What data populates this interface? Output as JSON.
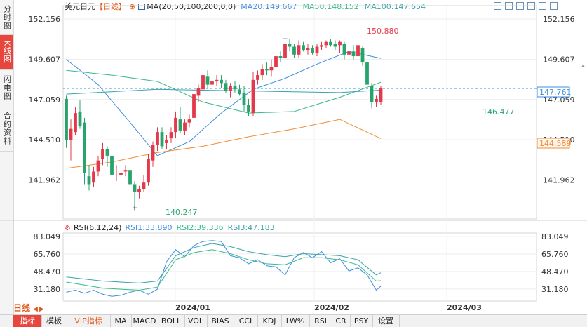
{
  "side_tabs": [
    {
      "label": "分时图",
      "active": false
    },
    {
      "label": "K线图",
      "active": true
    },
    {
      "label": "闪电图",
      "active": false
    },
    {
      "label": "合约资料",
      "active": false
    }
  ],
  "legend": {
    "symbol": "美元日元",
    "period_tag": "【日线】",
    "ma_label": "MA(20,50,100,200,0,0)",
    "ma20": "MA20:149.667",
    "ma50": "MA50:148.152",
    "ma100": "MA100:147.654"
  },
  "toolbar_icons": [
    "crosshair-tool-icon",
    "zoom-in-icon",
    "zoom-out-icon",
    "expand-icon",
    "left-icon",
    "right-icon"
  ],
  "colors": {
    "up": "#e4394a",
    "down": "#26a46c",
    "ma20": "#3d8ee0",
    "ma50": "#36b88e",
    "ma100": "#3aa3a8",
    "ma200": "#f28c35",
    "rsi1": "#3d8ee0",
    "rsi2": "#36b88e",
    "rsi3": "#3aa3a8"
  },
  "price_axis": {
    "ticks": [
      "152.156",
      "149.607",
      "147.059",
      "144.510",
      "141.962"
    ],
    "current_price": "147.761",
    "ma200_value": "144.589"
  },
  "annotations": {
    "high": "150.880",
    "low": "140.247",
    "recent_low": "146.477"
  },
  "rsi_legend": {
    "label": "RSI(6,12,24)",
    "rsi1": "RSI1:33.890",
    "rsi2": "RSI2:39.336",
    "rsi3": "RSI3:47.183"
  },
  "rsi_axis": {
    "ticks": [
      "83.049",
      "65.760",
      "48.470",
      "31.180"
    ]
  },
  "date_labels": [
    "2024/01",
    "2024/02",
    "2024/03"
  ],
  "period_selector": "日线",
  "bottom_tabs": [
    {
      "label": "指标",
      "active": true
    },
    {
      "label": "模板",
      "active": false
    },
    {
      "label": "VIP指标",
      "active": false
    },
    {
      "label": "MA",
      "active": false
    },
    {
      "label": "MACD",
      "active": false
    },
    {
      "label": "BOLL",
      "active": false
    },
    {
      "label": "VOL",
      "active": false
    },
    {
      "label": "BIAS",
      "active": false
    },
    {
      "label": "CCI",
      "active": false
    },
    {
      "label": "KDJ",
      "active": false
    },
    {
      "label": "LW%",
      "active": false
    },
    {
      "label": "RSI",
      "active": false
    },
    {
      "label": "CR",
      "active": false
    },
    {
      "label": "PSY",
      "active": false
    },
    {
      "label": "设置",
      "active": false
    }
  ],
  "chart_data": {
    "type": "candlestick",
    "title": "美元日元 日线",
    "y_range": [
      139.5,
      153.0
    ],
    "candles": [
      {
        "o": 147.1,
        "h": 147.3,
        "l": 144.0,
        "c": 144.5
      },
      {
        "o": 144.5,
        "h": 145.8,
        "l": 143.2,
        "c": 145.2
      },
      {
        "o": 145.0,
        "h": 146.6,
        "l": 144.8,
        "c": 146.2
      },
      {
        "o": 146.3,
        "h": 147.0,
        "l": 145.2,
        "c": 145.4
      },
      {
        "o": 145.6,
        "h": 145.9,
        "l": 141.7,
        "c": 142.4
      },
      {
        "o": 142.2,
        "h": 142.9,
        "l": 141.3,
        "c": 141.7
      },
      {
        "o": 141.8,
        "h": 142.8,
        "l": 141.5,
        "c": 142.5
      },
      {
        "o": 142.5,
        "h": 143.5,
        "l": 142.2,
        "c": 143.2
      },
      {
        "o": 143.3,
        "h": 144.3,
        "l": 142.9,
        "c": 143.9
      },
      {
        "o": 143.9,
        "h": 144.1,
        "l": 142.8,
        "c": 143.5
      },
      {
        "o": 143.5,
        "h": 143.9,
        "l": 141.9,
        "c": 142.3
      },
      {
        "o": 142.3,
        "h": 142.9,
        "l": 141.9,
        "c": 142.3
      },
      {
        "o": 142.3,
        "h": 142.8,
        "l": 142.1,
        "c": 142.4
      },
      {
        "o": 142.5,
        "h": 142.9,
        "l": 142.2,
        "c": 142.6
      },
      {
        "o": 142.6,
        "h": 142.9,
        "l": 141.4,
        "c": 141.7
      },
      {
        "o": 141.7,
        "h": 141.9,
        "l": 140.2,
        "c": 141.2
      },
      {
        "o": 141.2,
        "h": 141.6,
        "l": 140.8,
        "c": 141.4
      },
      {
        "o": 141.4,
        "h": 142.3,
        "l": 141.2,
        "c": 141.8
      },
      {
        "o": 141.8,
        "h": 143.6,
        "l": 141.6,
        "c": 143.3
      },
      {
        "o": 143.2,
        "h": 144.4,
        "l": 142.8,
        "c": 144.2
      },
      {
        "o": 144.2,
        "h": 145.3,
        "l": 143.8,
        "c": 145.0
      },
      {
        "o": 145.0,
        "h": 145.3,
        "l": 143.9,
        "c": 144.1
      },
      {
        "o": 144.3,
        "h": 144.8,
        "l": 143.9,
        "c": 144.5
      },
      {
        "o": 144.6,
        "h": 145.3,
        "l": 144.3,
        "c": 145.0
      },
      {
        "o": 145.0,
        "h": 146.3,
        "l": 144.6,
        "c": 145.9
      },
      {
        "o": 145.8,
        "h": 146.6,
        "l": 144.9,
        "c": 145.1
      },
      {
        "o": 145.1,
        "h": 145.8,
        "l": 144.8,
        "c": 145.6
      },
      {
        "o": 145.6,
        "h": 146.1,
        "l": 145.3,
        "c": 145.8
      },
      {
        "o": 145.9,
        "h": 147.7,
        "l": 145.6,
        "c": 147.4
      },
      {
        "o": 147.3,
        "h": 148.0,
        "l": 146.9,
        "c": 147.8
      },
      {
        "o": 147.7,
        "h": 148.9,
        "l": 147.2,
        "c": 148.6
      },
      {
        "o": 148.5,
        "h": 148.9,
        "l": 147.8,
        "c": 148.0
      },
      {
        "o": 148.0,
        "h": 148.3,
        "l": 147.7,
        "c": 148.2
      },
      {
        "o": 148.2,
        "h": 148.6,
        "l": 147.9,
        "c": 148.3
      },
      {
        "o": 148.3,
        "h": 148.6,
        "l": 147.8,
        "c": 148.1
      },
      {
        "o": 148.1,
        "h": 148.3,
        "l": 147.5,
        "c": 147.6
      },
      {
        "o": 147.6,
        "h": 148.1,
        "l": 147.2,
        "c": 147.9
      },
      {
        "o": 147.9,
        "h": 148.2,
        "l": 147.5,
        "c": 147.7
      },
      {
        "o": 147.7,
        "h": 148.0,
        "l": 147.3,
        "c": 147.4
      },
      {
        "o": 147.5,
        "h": 147.9,
        "l": 146.3,
        "c": 146.7
      },
      {
        "o": 146.7,
        "h": 147.1,
        "l": 146.0,
        "c": 146.3
      },
      {
        "o": 146.2,
        "h": 148.8,
        "l": 146.0,
        "c": 148.3
      },
      {
        "o": 148.3,
        "h": 148.9,
        "l": 148.0,
        "c": 148.6
      },
      {
        "o": 148.6,
        "h": 149.3,
        "l": 148.3,
        "c": 149.0
      },
      {
        "o": 149.0,
        "h": 149.4,
        "l": 148.6,
        "c": 148.9
      },
      {
        "o": 148.9,
        "h": 149.6,
        "l": 148.5,
        "c": 149.1
      },
      {
        "o": 149.1,
        "h": 150.0,
        "l": 148.9,
        "c": 149.8
      },
      {
        "o": 149.8,
        "h": 150.1,
        "l": 149.4,
        "c": 149.7
      },
      {
        "o": 149.7,
        "h": 150.9,
        "l": 149.6,
        "c": 150.6
      },
      {
        "o": 150.6,
        "h": 150.9,
        "l": 150.1,
        "c": 150.4
      },
      {
        "o": 150.4,
        "h": 150.6,
        "l": 149.7,
        "c": 149.9
      },
      {
        "o": 149.9,
        "h": 150.8,
        "l": 149.7,
        "c": 150.5
      },
      {
        "o": 150.5,
        "h": 150.7,
        "l": 150.1,
        "c": 150.2
      },
      {
        "o": 150.2,
        "h": 150.6,
        "l": 149.9,
        "c": 150.3
      },
      {
        "o": 150.3,
        "h": 150.5,
        "l": 149.9,
        "c": 150.0
      },
      {
        "o": 150.0,
        "h": 150.6,
        "l": 149.8,
        "c": 150.4
      },
      {
        "o": 150.4,
        "h": 150.7,
        "l": 150.2,
        "c": 150.5
      },
      {
        "o": 150.5,
        "h": 150.8,
        "l": 150.3,
        "c": 150.7
      },
      {
        "o": 150.7,
        "h": 150.9,
        "l": 150.4,
        "c": 150.5
      },
      {
        "o": 150.6,
        "h": 150.8,
        "l": 150.2,
        "c": 150.4
      },
      {
        "o": 150.5,
        "h": 150.8,
        "l": 150.0,
        "c": 150.7
      },
      {
        "o": 150.6,
        "h": 150.7,
        "l": 149.6,
        "c": 149.9
      },
      {
        "o": 149.9,
        "h": 150.4,
        "l": 149.5,
        "c": 150.1
      },
      {
        "o": 150.1,
        "h": 150.5,
        "l": 149.6,
        "c": 149.8
      },
      {
        "o": 149.8,
        "h": 150.6,
        "l": 149.6,
        "c": 150.5
      },
      {
        "o": 150.3,
        "h": 150.4,
        "l": 149.2,
        "c": 149.4
      },
      {
        "o": 149.4,
        "h": 149.6,
        "l": 147.7,
        "c": 148.0
      },
      {
        "o": 147.9,
        "h": 148.1,
        "l": 146.5,
        "c": 146.9
      },
      {
        "o": 146.9,
        "h": 147.3,
        "l": 146.6,
        "c": 147.1
      },
      {
        "o": 146.9,
        "h": 147.9,
        "l": 146.7,
        "c": 147.8
      }
    ],
    "ma_series": [
      {
        "name": "MA20",
        "x": [
          0,
          7,
          14,
          20,
          27,
          34,
          41,
          48,
          55,
          62,
          69
        ],
        "values": [
          149.6,
          148.0,
          145.6,
          143.5,
          144.4,
          146.2,
          147.7,
          148.4,
          149.3,
          150.1,
          149.667
        ]
      },
      {
        "name": "MA50",
        "x": [
          0,
          10,
          20,
          30,
          40,
          50,
          60,
          69
        ],
        "values": [
          148.9,
          148.6,
          148.2,
          146.9,
          146.2,
          146.3,
          147.2,
          148.152
        ]
      },
      {
        "name": "MA100",
        "x": [
          0,
          20,
          40,
          60,
          69
        ],
        "values": [
          147.4,
          147.7,
          147.6,
          147.5,
          147.654
        ]
      },
      {
        "name": "MA200",
        "x": [
          0,
          10,
          20,
          30,
          40,
          50,
          60,
          69
        ],
        "values": [
          142.7,
          143.1,
          143.7,
          144.1,
          144.7,
          145.2,
          145.8,
          144.589
        ]
      }
    ],
    "rsi": {
      "y_range": [
        20,
        85
      ],
      "series": [
        {
          "name": "RSI1",
          "x": [
            0,
            2,
            4,
            6,
            8,
            10,
            12,
            14,
            16,
            18,
            20,
            22,
            24,
            26,
            28,
            30,
            32,
            34,
            36,
            38,
            40,
            42,
            44,
            46,
            48,
            50,
            52,
            54,
            56,
            58,
            60,
            62,
            64,
            66,
            68,
            69
          ],
          "values": [
            28,
            30,
            27,
            30,
            26,
            24,
            25,
            28,
            30,
            26,
            31,
            58,
            70,
            63,
            74,
            78,
            79,
            78,
            64,
            62,
            56,
            60,
            54,
            53,
            45,
            62,
            67,
            62,
            68,
            57,
            61,
            49,
            52,
            45,
            30,
            33.89
          ]
        },
        {
          "name": "RSI2",
          "x": [
            0,
            4,
            8,
            12,
            16,
            20,
            24,
            28,
            32,
            36,
            40,
            44,
            48,
            52,
            56,
            60,
            64,
            68,
            69
          ],
          "values": [
            38,
            35,
            32,
            31,
            30,
            33,
            60,
            67,
            70,
            66,
            60,
            56,
            55,
            62,
            62,
            60,
            55,
            39,
            39.336
          ]
        },
        {
          "name": "RSI3",
          "x": [
            0,
            4,
            8,
            12,
            16,
            20,
            24,
            28,
            32,
            36,
            40,
            44,
            48,
            52,
            56,
            60,
            64,
            68,
            69
          ],
          "values": [
            43,
            41,
            39,
            38,
            37,
            39,
            64,
            72,
            76,
            73,
            68,
            65,
            63,
            66,
            65,
            64,
            60,
            45,
            47.183
          ]
        }
      ]
    }
  }
}
